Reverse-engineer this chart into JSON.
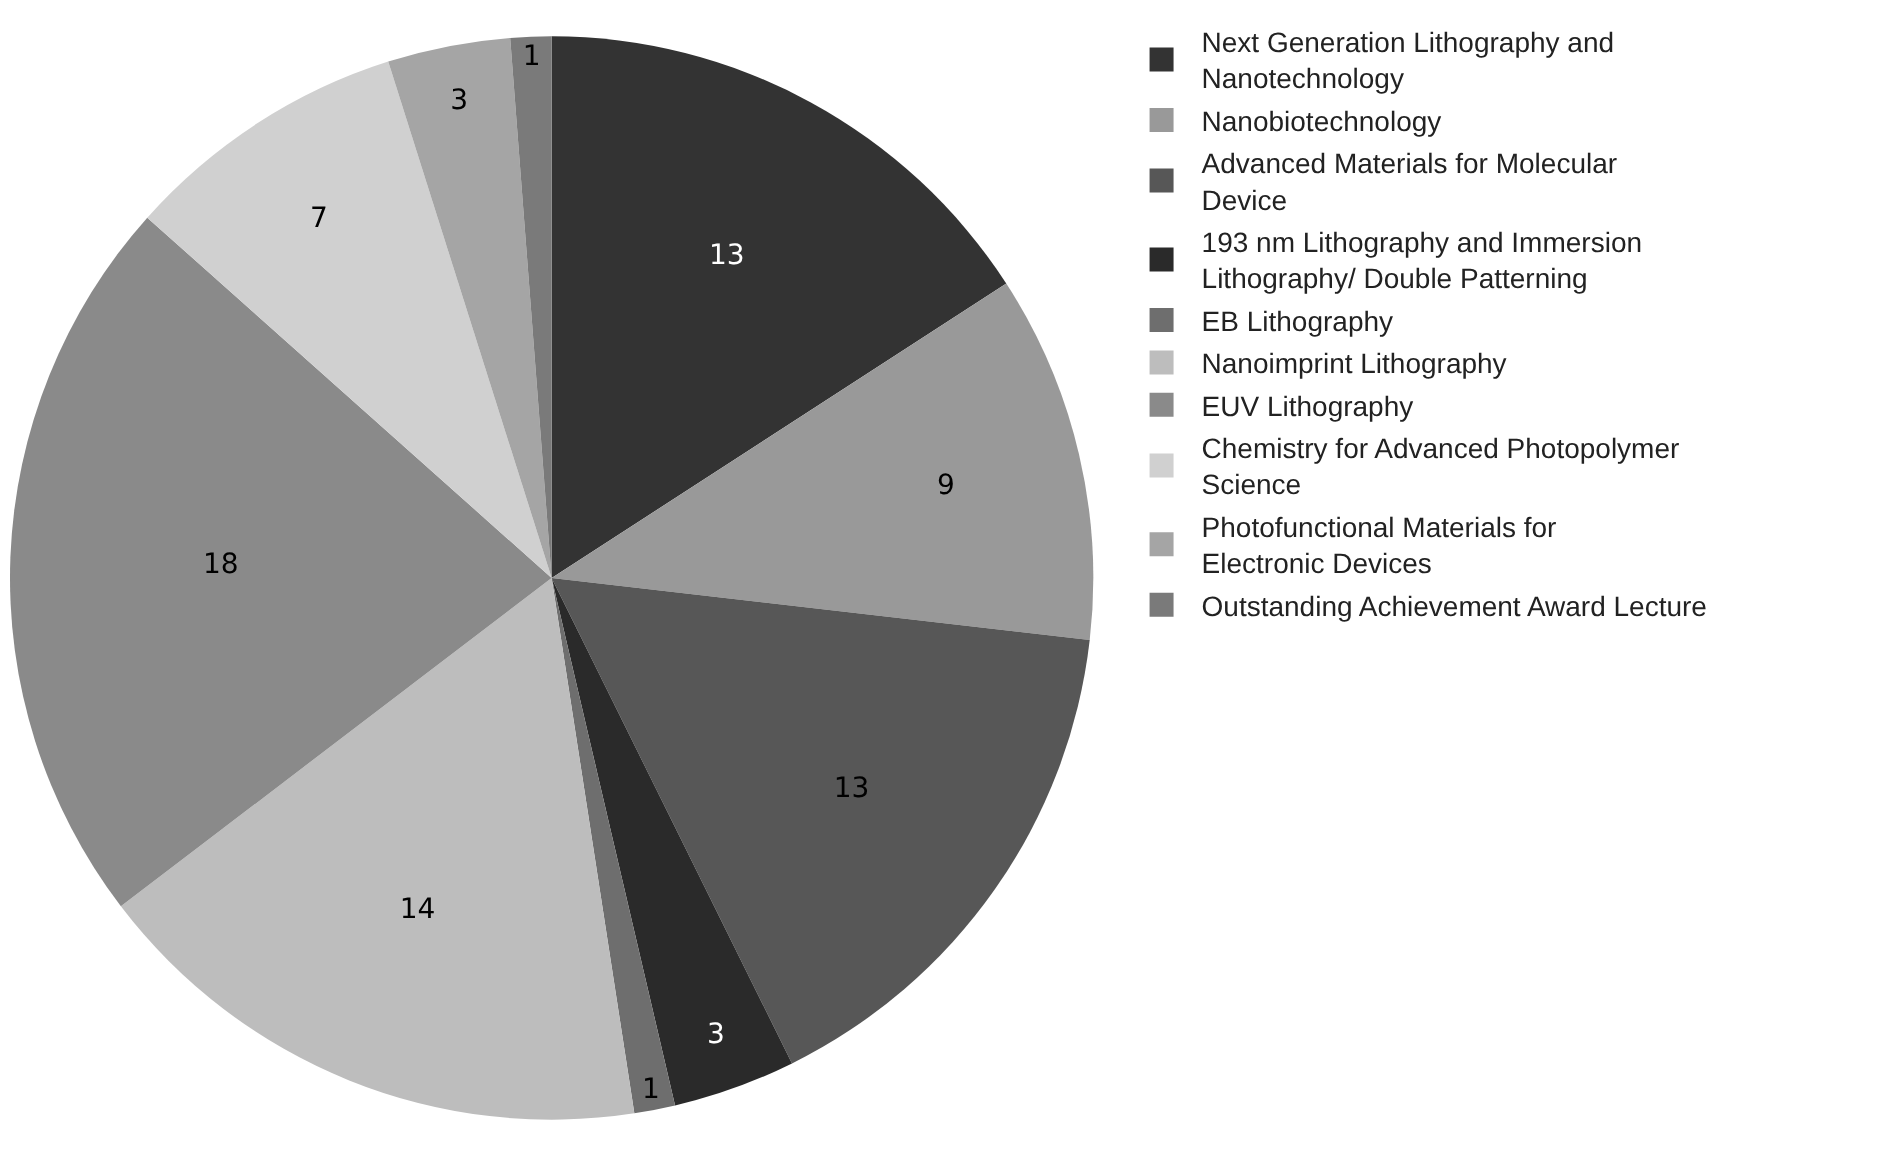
{
  "chart_data": {
    "type": "pie",
    "categories": [
      "Next Generation Lithography and Nanotechnology",
      "Nanobiotechnology",
      "Advanced Materials for Molecular Device",
      "193 nm Lithography and Immersion Lithography/ Double Patterning",
      "EB Lithography",
      "Nanoimprint Lithography",
      "EUV Lithography",
      "Chemistry for Advanced Photopolymer Science",
      "Photofunctional Materials for Electronic Devices",
      "Outstanding Achievement Award Lecture"
    ],
    "values": [
      13,
      9,
      13,
      3,
      1,
      14,
      18,
      7,
      3,
      1
    ],
    "colors": [
      "#333333",
      "#999999",
      "#575757",
      "#2a2a2a",
      "#6e6e6e",
      "#bdbdbd",
      "#8a8a8a",
      "#d0d0d0",
      "#a5a5a5",
      "#7a7a7a"
    ],
    "data_labels": true,
    "legend": "right"
  }
}
